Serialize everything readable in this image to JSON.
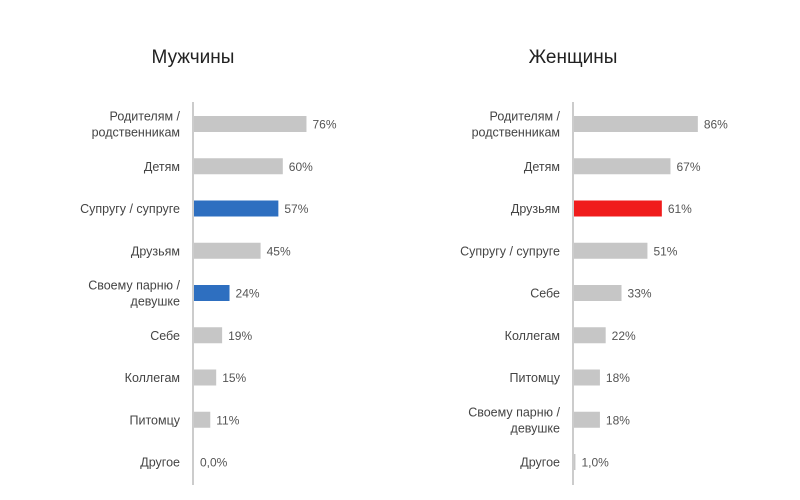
{
  "chart_data": [
    {
      "type": "bar",
      "orientation": "horizontal",
      "title": "Мужчины",
      "xlim": [
        0,
        100
      ],
      "grid": false,
      "default_color": "#c6c6c6",
      "categories": [
        [
          "Родителям /",
          "родственникам"
        ],
        [
          "Детям"
        ],
        [
          "Супругу / супруге"
        ],
        [
          "Друзьям"
        ],
        [
          "Своему парню /",
          "девушке"
        ],
        [
          "Себе"
        ],
        [
          "Коллегам"
        ],
        [
          "Питомцу"
        ],
        [
          "Другое"
        ]
      ],
      "values": [
        76,
        60,
        57,
        45,
        24,
        19,
        15,
        11,
        0
      ],
      "value_labels": [
        "76%",
        "60%",
        "57%",
        "45%",
        "24%",
        "19%",
        "15%",
        "11%",
        "0,0%"
      ],
      "highlight": {
        "indices": [
          2,
          4
        ],
        "color": "#2e6fc0"
      }
    },
    {
      "type": "bar",
      "orientation": "horizontal",
      "title": "Женщины",
      "xlim": [
        0,
        100
      ],
      "grid": false,
      "default_color": "#c6c6c6",
      "categories": [
        [
          "Родителям /",
          "родственникам"
        ],
        [
          "Детям"
        ],
        [
          "Друзьям"
        ],
        [
          "Супругу / супруге"
        ],
        [
          "Себе"
        ],
        [
          "Коллегам"
        ],
        [
          "Питомцу"
        ],
        [
          "Своему парню /",
          "девушке"
        ],
        [
          "Другое"
        ]
      ],
      "values": [
        86,
        67,
        61,
        51,
        33,
        22,
        18,
        18,
        1
      ],
      "value_labels": [
        "86%",
        "67%",
        "61%",
        "51%",
        "33%",
        "22%",
        "18%",
        "18%",
        "1,0%"
      ],
      "highlight": {
        "indices": [
          2
        ],
        "color": "#f01c1c"
      }
    }
  ]
}
